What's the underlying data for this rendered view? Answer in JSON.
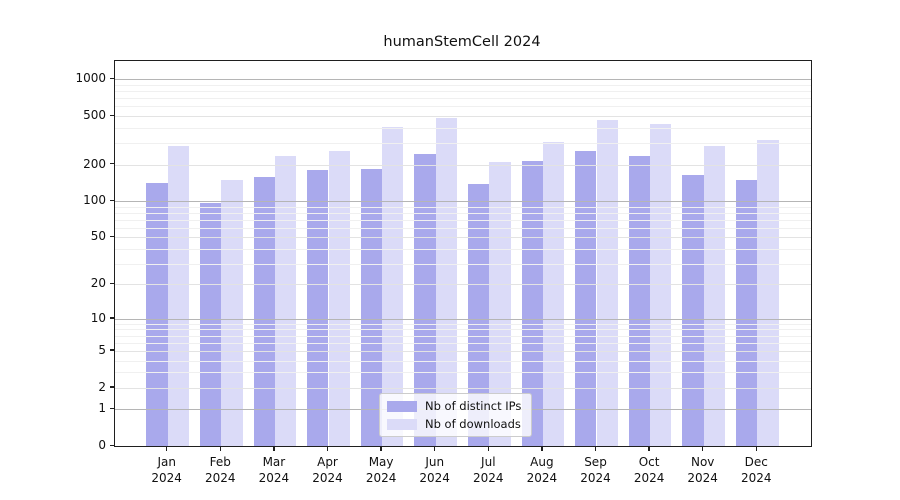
{
  "title": "humanStemCell 2024",
  "chart_data": {
    "type": "bar",
    "title": "humanStemCell 2024",
    "xlabel": "",
    "ylabel": "",
    "yscale": "log1p (symlog-like)",
    "grid": "on",
    "legend_position": "lower center",
    "categories": [
      "Jan",
      "Feb",
      "Mar",
      "Apr",
      "May",
      "Jun",
      "Jul",
      "Aug",
      "Sep",
      "Oct",
      "Nov",
      "Dec"
    ],
    "category_year": "2024",
    "series": [
      {
        "name": "Nb of distinct IPs",
        "color": "#a9a9ec",
        "values": [
          140,
          96,
          158,
          182,
          184,
          246,
          138,
          214,
          257,
          234,
          163,
          149
        ]
      },
      {
        "name": "Nb of downloads",
        "color": "#dbdbf8",
        "values": [
          287,
          148,
          237,
          261,
          407,
          483,
          209,
          305,
          469,
          427,
          285,
          321
        ]
      }
    ],
    "yticks": [
      0,
      1,
      2,
      5,
      10,
      20,
      50,
      100,
      200,
      500,
      1000
    ],
    "ylim": [
      0,
      1415
    ],
    "power_tick_color": "#b5b5b5",
    "spine_color": "#1f1f1f"
  }
}
